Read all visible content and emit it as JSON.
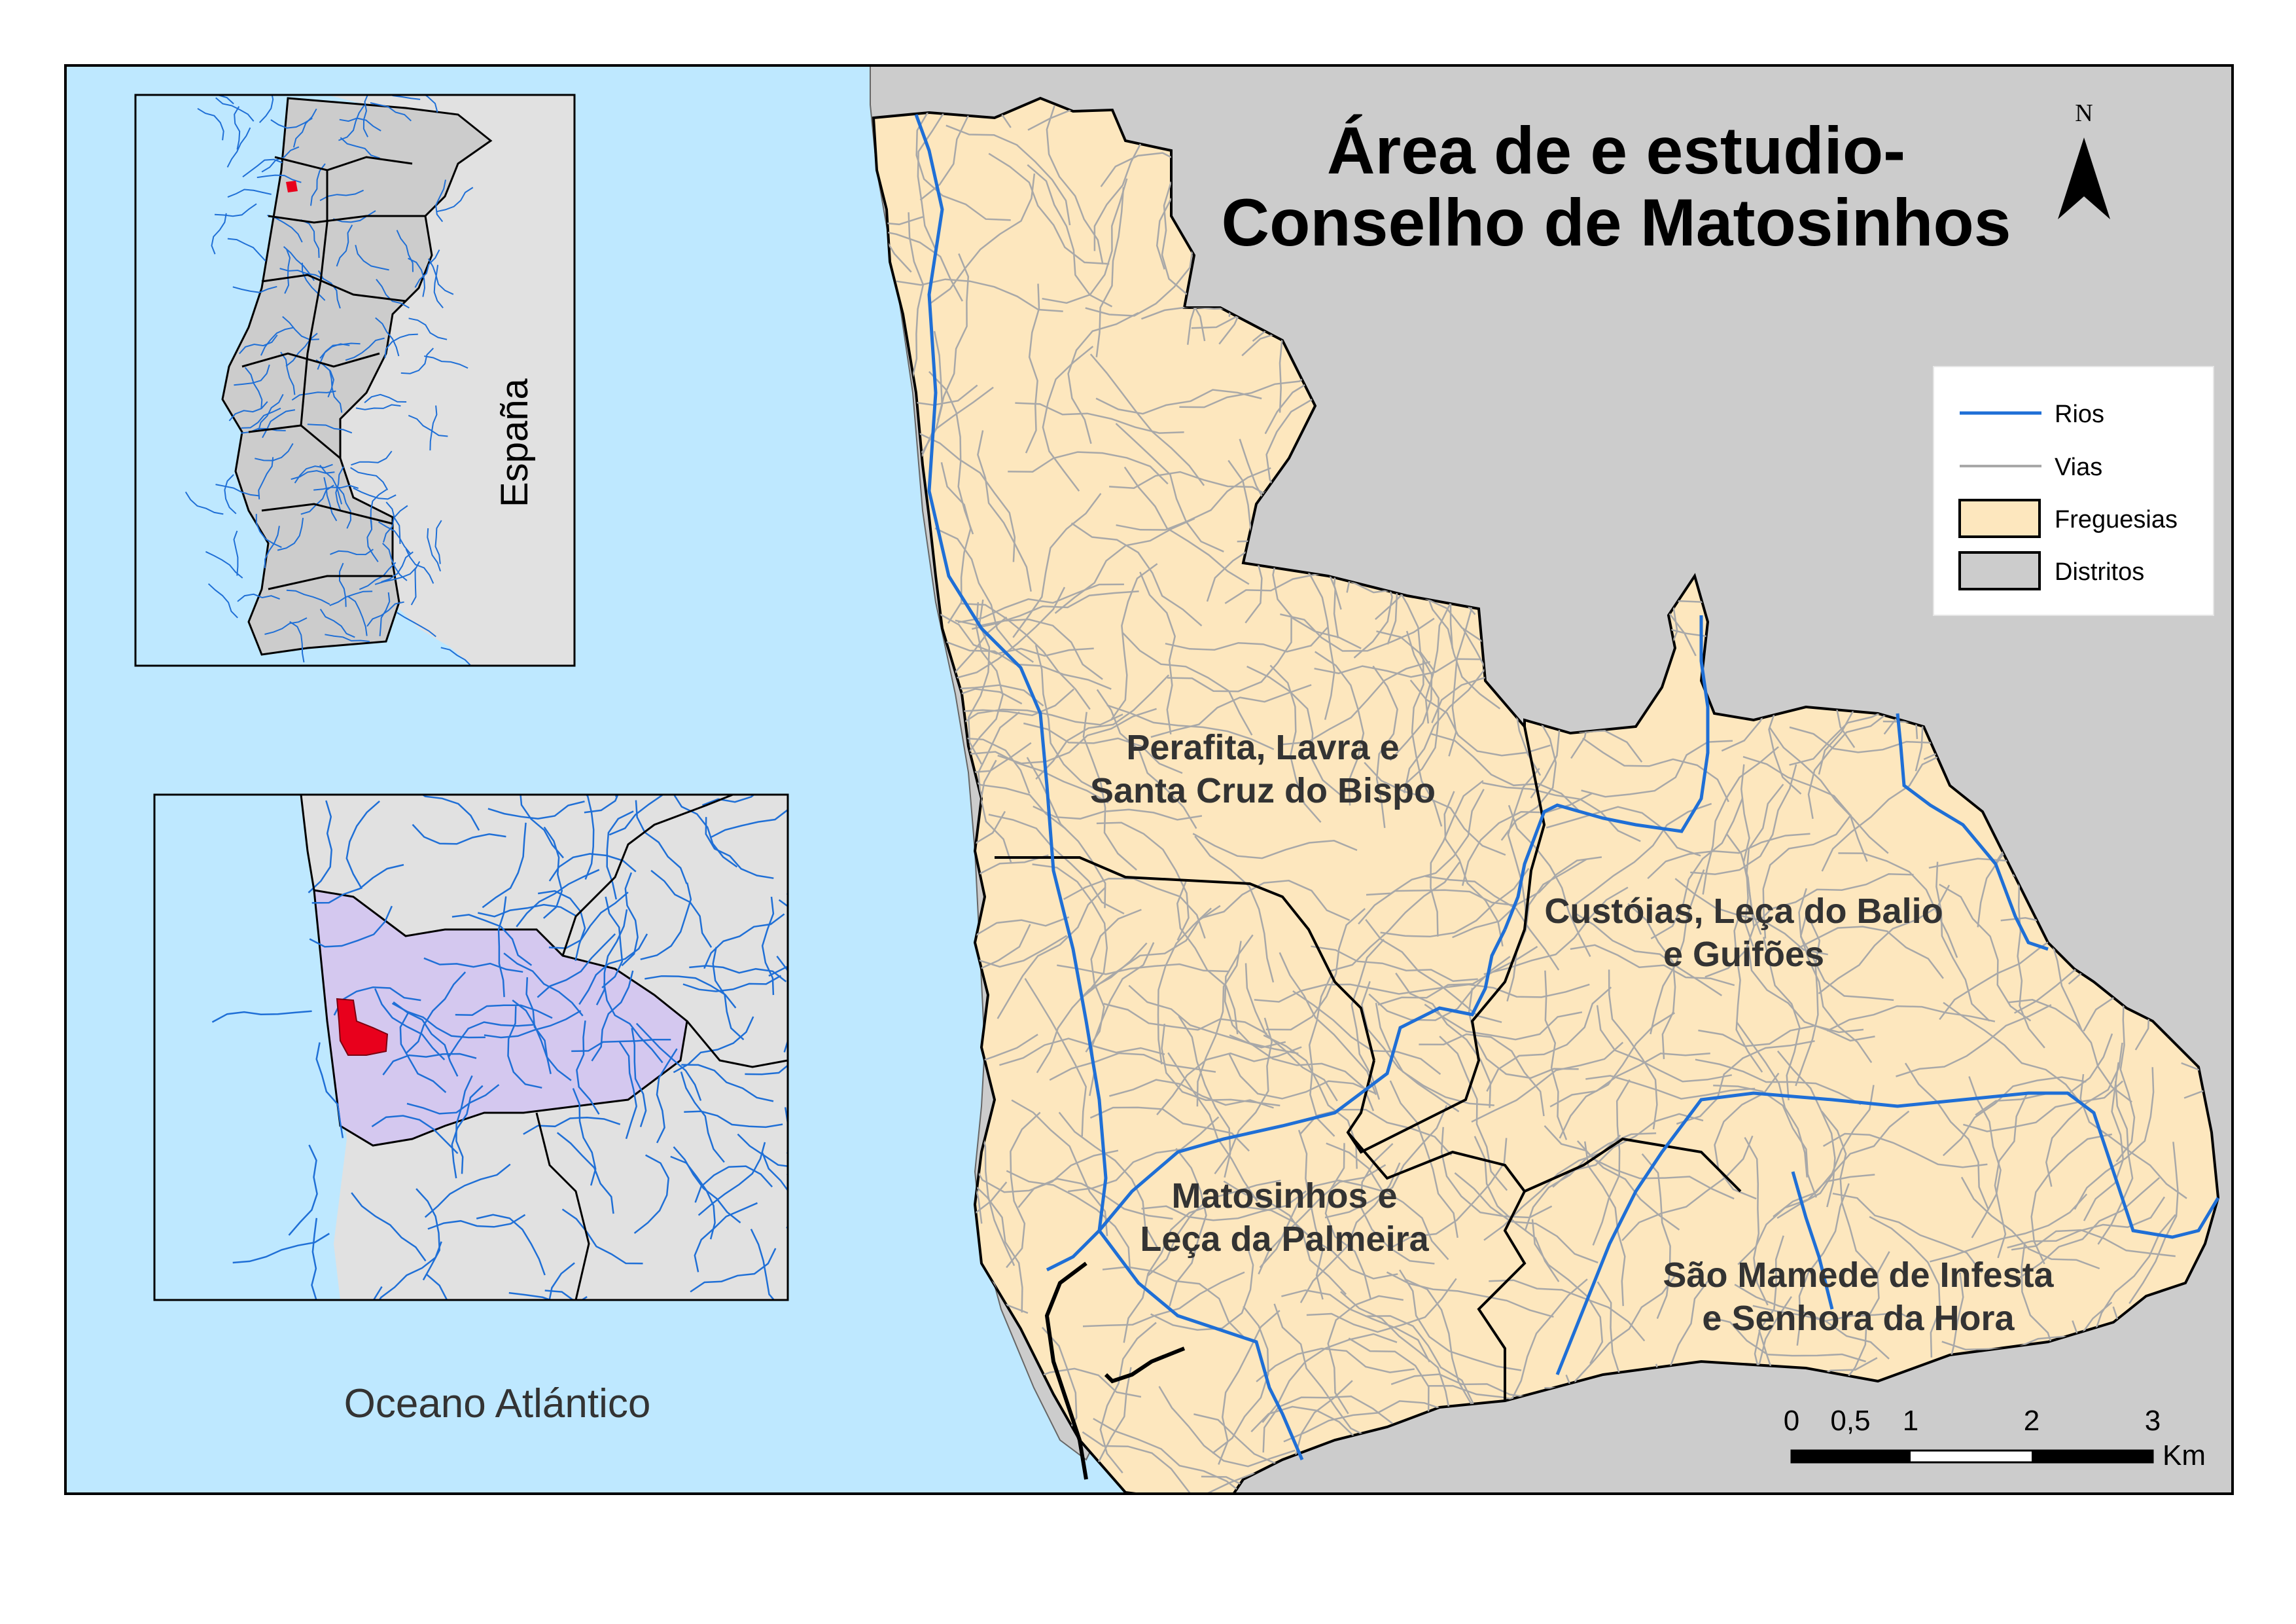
{
  "title": {
    "line1": "Área de e estudio-",
    "line2": "Conselho de Matosinhos"
  },
  "north_arrow": {
    "label": "N"
  },
  "legend": {
    "items": [
      {
        "label": "Rios",
        "symbol": "line",
        "color": "#1f6fd6"
      },
      {
        "label": "Vias",
        "symbol": "line",
        "color": "#a8a8a8"
      },
      {
        "label": "Freguesias",
        "symbol": "fill",
        "color": "#fde7be"
      },
      {
        "label": "Distritos",
        "symbol": "fill",
        "color": "#cccccc"
      }
    ]
  },
  "parishes": [
    {
      "line1": "Perafita, Lavra e",
      "line2": "Santa Cruz do Bispo"
    },
    {
      "line1": "Custóias, Leça do Balio",
      "line2": "e Guifões"
    },
    {
      "line1": "Matosinhos e",
      "line2": "Leça da Palmeira"
    },
    {
      "line1": "São Mamede de Infesta",
      "line2": "e Senhora da Hora"
    }
  ],
  "scale_bar": {
    "ticks": [
      "0",
      "0,5",
      "1",
      "2",
      "3"
    ],
    "unit": "Km"
  },
  "labels": {
    "ocean": "Oceano Atlántico",
    "country": "España"
  },
  "colors": {
    "ocean": "#bee8ff",
    "parish_fill": "#fde7be",
    "district_fill": "#cccccc",
    "inset_land": "#e1e1e1",
    "study_area": "#e8001c",
    "porto_district": "#d4c8ef",
    "river": "#1f6fd6",
    "road": "#a8a8a8"
  }
}
